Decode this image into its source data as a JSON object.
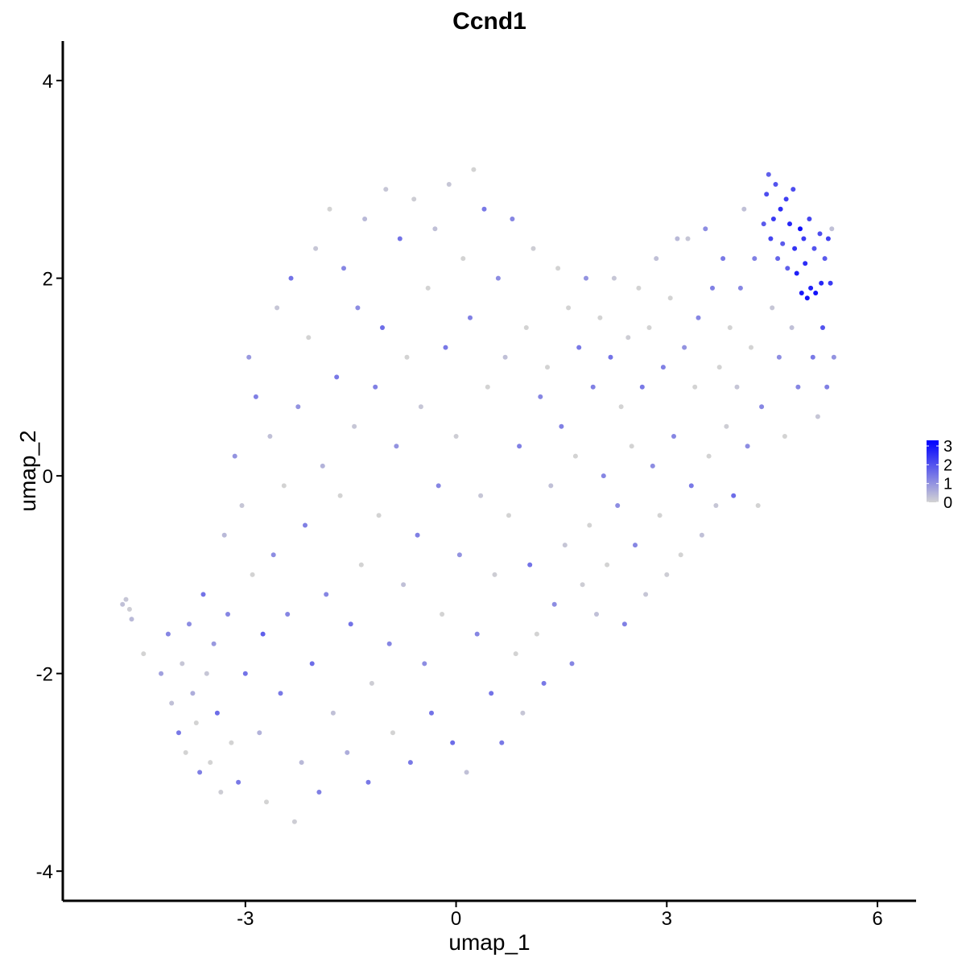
{
  "chart_data": {
    "type": "scatter",
    "title": "Ccnd1",
    "xlabel": "umap_1",
    "ylabel": "umap_2",
    "xlim": [
      -5.6,
      6.55
    ],
    "ylim": [
      -4.3,
      4.4
    ],
    "x_ticks": [
      -3,
      0,
      3,
      6
    ],
    "y_ticks": [
      -4,
      -2,
      0,
      2,
      4
    ],
    "x_tick_labels": [
      "-3",
      "0",
      "3",
      "6"
    ],
    "y_tick_labels": [
      "-4",
      "-2",
      "0",
      "2",
      "4"
    ],
    "grid": false,
    "legend": {
      "placement": "right",
      "type": "colorbar",
      "ticks": [
        "0",
        "1",
        "2",
        "3"
      ],
      "min": 0,
      "max": 3.3,
      "color_low": "#d3d3d3",
      "color_high": "#0000ff"
    },
    "points_note": "Each point is [umap_1, umap_2, expression].",
    "points": [
      [
        -4.75,
        -1.3,
        0.3
      ],
      [
        -4.7,
        -1.25,
        0.2
      ],
      [
        -4.65,
        -1.35,
        0.1
      ],
      [
        -4.62,
        -1.45,
        0.4
      ],
      [
        -4.45,
        -1.8,
        0.0
      ],
      [
        -4.2,
        -2.0,
        0.8
      ],
      [
        -4.1,
        -1.6,
        1.2
      ],
      [
        -4.05,
        -2.3,
        0.3
      ],
      [
        -3.95,
        -2.6,
        1.4
      ],
      [
        -3.9,
        -1.9,
        0.2
      ],
      [
        -3.85,
        -2.8,
        0.0
      ],
      [
        -3.8,
        -1.5,
        1.1
      ],
      [
        -3.75,
        -2.2,
        0.6
      ],
      [
        -3.7,
        -2.5,
        0.0
      ],
      [
        -3.65,
        -3.0,
        1.3
      ],
      [
        -3.6,
        -1.2,
        1.5
      ],
      [
        -3.55,
        -2.0,
        0.2
      ],
      [
        -3.5,
        -2.9,
        0.0
      ],
      [
        -3.45,
        -1.7,
        0.9
      ],
      [
        -3.4,
        -2.4,
        1.6
      ],
      [
        -3.35,
        -3.2,
        0.1
      ],
      [
        -3.3,
        -0.6,
        0.4
      ],
      [
        -3.25,
        -1.4,
        1.2
      ],
      [
        -3.2,
        -2.7,
        0.0
      ],
      [
        -3.15,
        0.2,
        1.0
      ],
      [
        -3.1,
        -3.1,
        1.4
      ],
      [
        -3.05,
        -0.3,
        0.2
      ],
      [
        -3.0,
        -2.0,
        1.5
      ],
      [
        -2.95,
        1.2,
        0.9
      ],
      [
        -2.9,
        -1.0,
        0.0
      ],
      [
        -2.85,
        0.8,
        1.3
      ],
      [
        -2.8,
        -2.6,
        0.5
      ],
      [
        -2.75,
        -1.6,
        1.8
      ],
      [
        -2.7,
        -3.3,
        0.0
      ],
      [
        -2.65,
        0.4,
        0.3
      ],
      [
        -2.6,
        -0.8,
        1.1
      ],
      [
        -2.55,
        1.7,
        0.2
      ],
      [
        -2.5,
        -2.2,
        1.4
      ],
      [
        -2.45,
        -0.1,
        0.0
      ],
      [
        -2.4,
        -1.4,
        1.2
      ],
      [
        -2.35,
        2.0,
        1.5
      ],
      [
        -2.3,
        -3.5,
        0.1
      ],
      [
        -2.25,
        0.7,
        1.0
      ],
      [
        -2.2,
        -2.9,
        0.4
      ],
      [
        -2.15,
        -0.5,
        1.3
      ],
      [
        -2.1,
        1.4,
        0.0
      ],
      [
        -2.05,
        -1.9,
        1.6
      ],
      [
        -2.0,
        2.3,
        0.2
      ],
      [
        -1.95,
        -3.2,
        1.3
      ],
      [
        -1.9,
        0.1,
        0.5
      ],
      [
        -1.85,
        -1.2,
        1.2
      ],
      [
        -1.8,
        2.7,
        0.0
      ],
      [
        -1.75,
        -2.4,
        0.3
      ],
      [
        -1.7,
        1.0,
        1.4
      ],
      [
        -1.65,
        -0.2,
        0.0
      ],
      [
        -1.6,
        2.1,
        1.2
      ],
      [
        -1.55,
        -2.8,
        0.6
      ],
      [
        -1.5,
        -1.5,
        1.5
      ],
      [
        -1.45,
        0.5,
        0.2
      ],
      [
        -1.4,
        1.7,
        1.1
      ],
      [
        -1.35,
        -0.9,
        0.0
      ],
      [
        -1.3,
        2.6,
        0.4
      ],
      [
        -1.25,
        -3.1,
        1.4
      ],
      [
        -1.2,
        -2.1,
        0.1
      ],
      [
        -1.15,
        0.9,
        1.3
      ],
      [
        -1.1,
        -0.4,
        0.0
      ],
      [
        -1.05,
        1.5,
        1.6
      ],
      [
        -1.0,
        2.9,
        0.2
      ],
      [
        -0.95,
        -1.7,
        1.2
      ],
      [
        -0.9,
        -2.6,
        0.0
      ],
      [
        -0.85,
        0.3,
        1.0
      ],
      [
        -0.8,
        2.4,
        1.5
      ],
      [
        -0.75,
        -1.1,
        0.3
      ],
      [
        -0.7,
        1.2,
        0.0
      ],
      [
        -0.65,
        -2.9,
        1.4
      ],
      [
        -0.6,
        2.8,
        0.1
      ],
      [
        -0.55,
        -0.6,
        1.3
      ],
      [
        -0.5,
        0.7,
        0.2
      ],
      [
        -0.45,
        -1.9,
        1.1
      ],
      [
        -0.4,
        1.9,
        0.0
      ],
      [
        -0.35,
        -2.4,
        1.5
      ],
      [
        -0.3,
        2.5,
        0.3
      ],
      [
        -0.25,
        -0.1,
        1.2
      ],
      [
        -0.2,
        -1.4,
        0.0
      ],
      [
        -0.15,
        1.3,
        1.4
      ],
      [
        -0.1,
        2.95,
        0.2
      ],
      [
        -0.05,
        -2.7,
        1.6
      ],
      [
        0.0,
        0.4,
        0.1
      ],
      [
        0.05,
        -0.8,
        1.0
      ],
      [
        0.1,
        2.2,
        0.0
      ],
      [
        0.15,
        -3.0,
        0.3
      ],
      [
        0.2,
        1.6,
        1.3
      ],
      [
        0.25,
        3.1,
        0.0
      ],
      [
        0.3,
        -1.6,
        1.2
      ],
      [
        0.35,
        -0.2,
        0.2
      ],
      [
        0.4,
        2.7,
        1.4
      ],
      [
        0.45,
        0.9,
        0.0
      ],
      [
        0.5,
        -2.2,
        1.5
      ],
      [
        0.55,
        -1.0,
        0.1
      ],
      [
        0.6,
        2.0,
        1.1
      ],
      [
        0.65,
        -2.7,
        1.4
      ],
      [
        0.7,
        1.2,
        0.3
      ],
      [
        0.75,
        -0.4,
        0.0
      ],
      [
        0.8,
        2.6,
        1.2
      ],
      [
        0.85,
        -1.8,
        0.0
      ],
      [
        0.9,
        0.3,
        1.3
      ],
      [
        0.95,
        -2.4,
        0.2
      ],
      [
        1.0,
        1.5,
        0.0
      ],
      [
        1.05,
        -0.9,
        1.5
      ],
      [
        1.1,
        2.3,
        0.1
      ],
      [
        1.15,
        -1.6,
        0.0
      ],
      [
        1.2,
        0.8,
        1.2
      ],
      [
        1.25,
        -2.1,
        1.4
      ],
      [
        1.3,
        1.1,
        0.0
      ],
      [
        1.35,
        -0.1,
        0.3
      ],
      [
        1.4,
        -1.3,
        1.1
      ],
      [
        1.45,
        2.1,
        0.0
      ],
      [
        1.5,
        0.5,
        1.3
      ],
      [
        1.55,
        -0.7,
        0.2
      ],
      [
        1.6,
        1.7,
        0.0
      ],
      [
        1.65,
        -1.9,
        1.2
      ],
      [
        1.7,
        0.2,
        0.0
      ],
      [
        1.75,
        1.3,
        1.4
      ],
      [
        1.8,
        -1.1,
        0.1
      ],
      [
        1.85,
        2.0,
        1.0
      ],
      [
        1.9,
        -0.5,
        0.0
      ],
      [
        1.95,
        0.9,
        1.3
      ],
      [
        2.0,
        -1.4,
        0.3
      ],
      [
        2.05,
        1.6,
        0.0
      ],
      [
        2.1,
        0.0,
        1.2
      ],
      [
        2.15,
        -0.9,
        0.0
      ],
      [
        2.2,
        1.2,
        1.5
      ],
      [
        2.25,
        2.0,
        0.2
      ],
      [
        2.3,
        -0.3,
        1.1
      ],
      [
        2.35,
        0.7,
        0.0
      ],
      [
        2.4,
        -1.5,
        1.3
      ],
      [
        2.45,
        1.4,
        0.1
      ],
      [
        2.5,
        0.3,
        0.0
      ],
      [
        2.55,
        -0.7,
        1.2
      ],
      [
        2.6,
        1.9,
        0.0
      ],
      [
        2.65,
        0.9,
        1.4
      ],
      [
        2.7,
        -1.2,
        0.2
      ],
      [
        2.75,
        1.5,
        0.0
      ],
      [
        2.8,
        0.1,
        1.1
      ],
      [
        2.85,
        2.2,
        0.3
      ],
      [
        2.9,
        -0.4,
        0.0
      ],
      [
        2.95,
        1.1,
        1.3
      ],
      [
        3.0,
        -1.0,
        0.1
      ],
      [
        3.05,
        1.8,
        0.0
      ],
      [
        3.1,
        0.4,
        1.2
      ],
      [
        3.15,
        2.4,
        0.4
      ],
      [
        3.2,
        -0.8,
        0.0
      ],
      [
        3.25,
        1.3,
        1.0
      ],
      [
        3.3,
        2.4,
        0.2
      ],
      [
        3.35,
        -0.1,
        1.4
      ],
      [
        3.4,
        0.9,
        0.0
      ],
      [
        3.45,
        1.6,
        1.2
      ],
      [
        3.5,
        -0.6,
        0.3
      ],
      [
        3.55,
        2.5,
        1.1
      ],
      [
        3.6,
        0.2,
        0.0
      ],
      [
        3.65,
        1.9,
        1.3
      ],
      [
        3.7,
        -0.3,
        0.2
      ],
      [
        3.75,
        1.1,
        0.0
      ],
      [
        3.8,
        2.2,
        1.4
      ],
      [
        3.85,
        0.5,
        0.1
      ],
      [
        3.9,
        1.5,
        0.0
      ],
      [
        3.95,
        -0.2,
        1.6
      ],
      [
        4.0,
        0.9,
        0.2
      ],
      [
        4.05,
        1.9,
        1.2
      ],
      [
        4.1,
        2.7,
        0.3
      ],
      [
        4.15,
        0.3,
        1.1
      ],
      [
        4.2,
        1.3,
        0.0
      ],
      [
        4.25,
        2.2,
        1.3
      ],
      [
        4.3,
        -0.3,
        0.0
      ],
      [
        4.35,
        0.7,
        1.2
      ],
      [
        4.38,
        2.55,
        1.9
      ],
      [
        4.42,
        2.85,
        2.1
      ],
      [
        4.45,
        3.05,
        1.8
      ],
      [
        4.48,
        2.4,
        2.2
      ],
      [
        4.5,
        1.7,
        0.2
      ],
      [
        4.52,
        2.6,
        2.4
      ],
      [
        4.55,
        2.95,
        2.0
      ],
      [
        4.58,
        2.2,
        1.7
      ],
      [
        4.6,
        1.2,
        1.1
      ],
      [
        4.62,
        2.7,
        2.6
      ],
      [
        4.65,
        2.35,
        1.9
      ],
      [
        4.68,
        0.4,
        0.0
      ],
      [
        4.7,
        2.8,
        2.3
      ],
      [
        4.72,
        2.1,
        1.8
      ],
      [
        4.75,
        2.55,
        2.7
      ],
      [
        4.78,
        1.5,
        0.3
      ],
      [
        4.8,
        2.9,
        2.1
      ],
      [
        4.82,
        2.3,
        2.5
      ],
      [
        4.85,
        2.05,
        2.8
      ],
      [
        4.87,
        0.9,
        1.2
      ],
      [
        4.9,
        2.5,
        3.1
      ],
      [
        4.92,
        1.85,
        2.9
      ],
      [
        4.95,
        2.4,
        2.4
      ],
      [
        4.97,
        2.15,
        2.6
      ],
      [
        5.0,
        1.8,
        3.0
      ],
      [
        5.03,
        2.6,
        2.2
      ],
      [
        5.05,
        1.9,
        2.8
      ],
      [
        5.08,
        1.2,
        1.4
      ],
      [
        5.1,
        2.3,
        2.0
      ],
      [
        5.12,
        1.85,
        3.0
      ],
      [
        5.15,
        0.6,
        0.2
      ],
      [
        5.18,
        2.45,
        2.1
      ],
      [
        5.2,
        1.95,
        2.7
      ],
      [
        5.22,
        1.5,
        2.0
      ],
      [
        5.25,
        2.2,
        1.9
      ],
      [
        5.28,
        0.9,
        1.3
      ],
      [
        5.3,
        2.4,
        2.3
      ],
      [
        5.33,
        1.95,
        2.4
      ],
      [
        5.35,
        2.5,
        0.3
      ],
      [
        5.38,
        1.2,
        1.0
      ]
    ]
  }
}
